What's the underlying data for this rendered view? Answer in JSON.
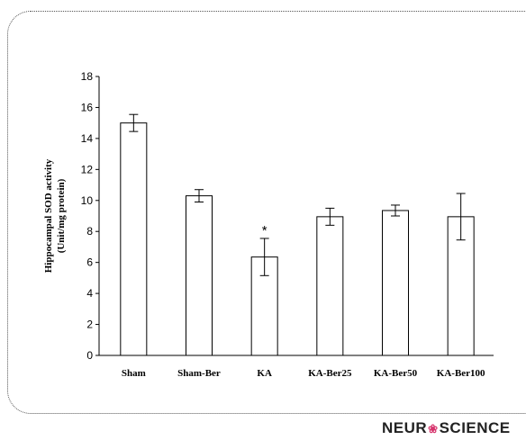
{
  "chart_data": {
    "type": "bar",
    "categories": [
      "Sham",
      "Sham-Ber",
      "KA",
      "KA-Ber25",
      "KA-Ber50",
      "KA-Ber100"
    ],
    "values": [
      15.0,
      10.3,
      6.35,
      8.95,
      9.35,
      8.95
    ],
    "errors": [
      0.55,
      0.4,
      1.2,
      0.55,
      0.35,
      1.5
    ],
    "ylabel_line1": "Hippocampal SOD activity",
    "ylabel_line2": "(Unit/mg protein)",
    "xlabel": "",
    "ylim": [
      0,
      18
    ],
    "yticks": [
      0,
      2,
      4,
      6,
      8,
      10,
      12,
      14,
      16,
      18
    ],
    "annotations": [
      {
        "category": "KA",
        "text": "*"
      }
    ],
    "grid": false,
    "bar_fill": "#ffffff",
    "bar_stroke": "#000000"
  },
  "logo": {
    "part1": "NEUR",
    "part2": "SCIENCE"
  }
}
